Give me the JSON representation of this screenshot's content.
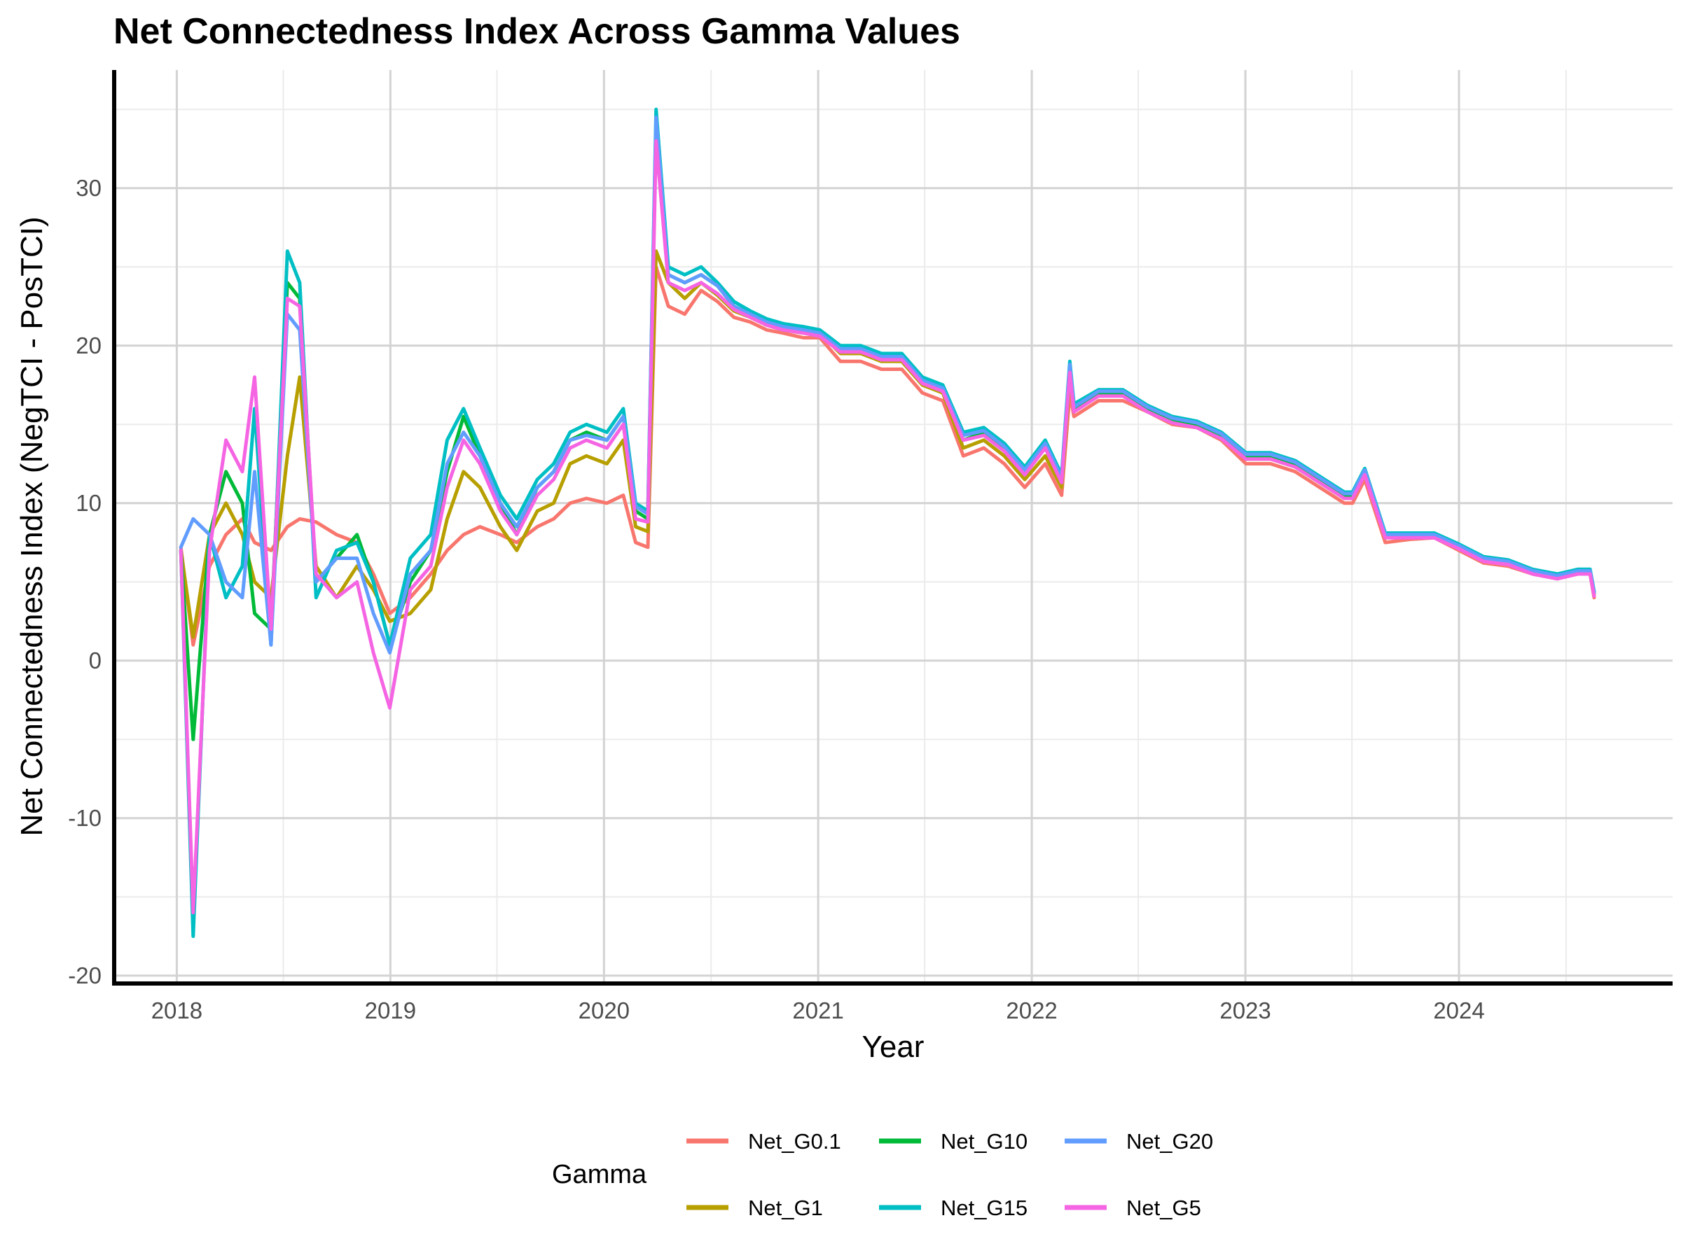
{
  "chart_data": {
    "type": "line",
    "title": "Net Connectedness Index Across Gamma Values",
    "xlabel": "Year",
    "ylabel": "Net Connectedness Index (NegTCI - PosTCI)",
    "xlim": [
      "2017-09-16",
      "2024-12-31"
    ],
    "ylim": [
      -20.5,
      37.5
    ],
    "x_ticks": [
      "2018",
      "2019",
      "2020",
      "2021",
      "2022",
      "2023",
      "2024"
    ],
    "y_ticks": [
      -20,
      -10,
      0,
      10,
      20,
      30
    ],
    "grid": true,
    "legend": {
      "title": "Gamma",
      "position": "bottom"
    },
    "x": [
      "2018-01-08",
      "2018-01-29",
      "2018-02-26",
      "2018-03-26",
      "2018-04-23",
      "2018-05-14",
      "2018-06-11",
      "2018-07-09",
      "2018-07-30",
      "2018-08-27",
      "2018-10-01",
      "2018-11-05",
      "2018-12-03",
      "2018-12-31",
      "2019-02-04",
      "2019-03-11",
      "2019-04-08",
      "2019-05-06",
      "2019-06-03",
      "2019-07-08",
      "2019-08-05",
      "2019-09-09",
      "2019-10-07",
      "2019-11-04",
      "2019-12-02",
      "2020-01-06",
      "2020-02-03",
      "2020-02-24",
      "2020-03-16",
      "2020-03-30",
      "2020-04-20",
      "2020-05-18",
      "2020-06-15",
      "2020-07-13",
      "2020-08-10",
      "2020-09-07",
      "2020-10-05",
      "2020-11-02",
      "2020-12-07",
      "2021-01-04",
      "2021-02-08",
      "2021-03-15",
      "2021-04-19",
      "2021-05-24",
      "2021-06-28",
      "2021-08-02",
      "2021-09-06",
      "2021-10-11",
      "2021-11-15",
      "2021-12-20",
      "2022-01-24",
      "2022-02-21",
      "2022-03-07",
      "2022-03-14",
      "2022-04-25",
      "2022-06-06",
      "2022-07-18",
      "2022-08-29",
      "2022-10-10",
      "2022-11-21",
      "2023-01-02",
      "2023-02-13",
      "2023-03-27",
      "2023-05-08",
      "2023-06-19",
      "2023-07-03",
      "2023-07-24",
      "2023-08-28",
      "2023-10-09",
      "2023-11-20",
      "2024-01-01",
      "2024-02-12",
      "2024-03-25",
      "2024-05-06",
      "2024-06-17",
      "2024-07-22",
      "2024-08-12",
      "2024-08-19"
    ],
    "series": [
      {
        "name": "Net_G0.1",
        "color": "#F8766D",
        "values": [
          7.2,
          1.0,
          6.0,
          8.0,
          9.0,
          7.5,
          7.0,
          8.5,
          9.0,
          8.8,
          8.0,
          7.5,
          5.5,
          3.0,
          4.0,
          5.5,
          7.0,
          8.0,
          8.5,
          8.0,
          7.5,
          8.5,
          9.0,
          10.0,
          10.3,
          10.0,
          10.5,
          7.5,
          7.2,
          25.0,
          22.5,
          22.0,
          23.5,
          22.8,
          21.8,
          21.5,
          21.0,
          20.8,
          20.5,
          20.5,
          19.0,
          19.0,
          18.5,
          18.5,
          17.0,
          16.5,
          13.0,
          13.5,
          12.5,
          11.0,
          12.5,
          10.5,
          17.0,
          15.5,
          16.5,
          16.5,
          15.8,
          15.0,
          14.8,
          14.0,
          12.5,
          12.5,
          12.0,
          11.0,
          10.0,
          10.0,
          11.5,
          7.5,
          7.7,
          7.8,
          7.0,
          6.2,
          6.0,
          5.5,
          5.2,
          5.5,
          5.5,
          4.0
        ]
      },
      {
        "name": "Net_G1",
        "color": "#B79F00",
        "values": [
          7.0,
          1.5,
          8.0,
          10.0,
          8.0,
          5.0,
          4.0,
          13.0,
          18.0,
          6.0,
          4.0,
          6.0,
          4.5,
          2.5,
          3.0,
          4.5,
          9.0,
          12.0,
          11.0,
          8.5,
          7.0,
          9.5,
          10.0,
          12.5,
          13.0,
          12.5,
          14.0,
          8.5,
          8.2,
          26.0,
          24.0,
          23.0,
          24.0,
          23.2,
          22.2,
          21.8,
          21.3,
          21.0,
          20.8,
          20.8,
          19.5,
          19.5,
          19.0,
          19.0,
          17.5,
          17.0,
          13.5,
          14.0,
          13.0,
          11.5,
          13.0,
          11.0,
          18.0,
          16.0,
          17.0,
          17.0,
          16.0,
          15.2,
          15.0,
          14.2,
          12.8,
          12.8,
          12.3,
          11.3,
          10.3,
          10.3,
          12.0,
          7.8,
          7.9,
          8.0,
          7.2,
          6.4,
          6.2,
          5.6,
          5.3,
          5.6,
          5.6,
          4.2
        ]
      },
      {
        "name": "Net_G10",
        "color": "#00BA38",
        "values": [
          7.0,
          -5.0,
          8.0,
          12.0,
          10.0,
          3.0,
          2.0,
          24.0,
          23.0,
          5.0,
          6.5,
          8.0,
          5.0,
          1.0,
          5.0,
          7.0,
          12.0,
          15.5,
          13.0,
          10.0,
          8.0,
          11.0,
          12.0,
          14.0,
          14.5,
          14.0,
          15.5,
          9.5,
          9.0,
          34.0,
          24.5,
          24.0,
          24.5,
          23.8,
          22.5,
          22.0,
          21.5,
          21.2,
          21.0,
          20.8,
          19.8,
          19.8,
          19.2,
          19.3,
          17.8,
          17.3,
          14.0,
          14.5,
          13.5,
          12.0,
          13.5,
          11.5,
          18.5,
          16.0,
          17.0,
          17.0,
          16.0,
          15.3,
          15.0,
          14.3,
          13.0,
          13.0,
          12.5,
          11.5,
          10.5,
          10.5,
          12.0,
          8.0,
          8.0,
          8.0,
          7.3,
          6.5,
          6.3,
          5.7,
          5.4,
          5.7,
          5.7,
          4.3
        ]
      },
      {
        "name": "Net_G15",
        "color": "#00BFC4",
        "values": [
          7.0,
          -17.5,
          8.0,
          4.0,
          6.0,
          16.0,
          1.0,
          26.0,
          24.0,
          4.0,
          7.0,
          7.5,
          5.0,
          1.0,
          6.5,
          8.0,
          14.0,
          16.0,
          13.5,
          10.5,
          9.0,
          11.5,
          12.5,
          14.5,
          15.0,
          14.5,
          16.0,
          10.0,
          9.5,
          35.0,
          25.0,
          24.5,
          25.0,
          24.0,
          22.8,
          22.2,
          21.7,
          21.4,
          21.2,
          21.0,
          20.0,
          20.0,
          19.5,
          19.5,
          18.0,
          17.5,
          14.5,
          14.8,
          13.8,
          12.3,
          14.0,
          11.8,
          19.0,
          16.3,
          17.2,
          17.2,
          16.2,
          15.5,
          15.2,
          14.5,
          13.2,
          13.2,
          12.7,
          11.7,
          10.7,
          10.7,
          12.2,
          8.1,
          8.1,
          8.1,
          7.4,
          6.6,
          6.4,
          5.8,
          5.5,
          5.8,
          5.8,
          4.4
        ]
      },
      {
        "name": "Net_G20",
        "color": "#619CFF",
        "values": [
          7.2,
          9.0,
          8.0,
          5.0,
          4.0,
          12.0,
          1.0,
          22.0,
          21.0,
          5.0,
          6.5,
          6.5,
          3.0,
          0.5,
          5.5,
          7.0,
          12.5,
          14.5,
          13.0,
          10.0,
          8.5,
          11.0,
          12.0,
          14.0,
          14.3,
          14.0,
          15.5,
          9.8,
          9.3,
          34.5,
          24.5,
          24.0,
          24.5,
          23.8,
          22.5,
          22.0,
          21.5,
          21.2,
          21.0,
          20.8,
          19.8,
          19.8,
          19.3,
          19.3,
          17.8,
          17.3,
          14.3,
          14.6,
          13.6,
          12.1,
          13.8,
          11.6,
          18.8,
          16.1,
          17.1,
          17.1,
          16.1,
          15.4,
          15.1,
          14.4,
          13.1,
          13.1,
          12.6,
          11.6,
          10.6,
          10.6,
          12.1,
          8.0,
          8.0,
          8.0,
          7.3,
          6.5,
          6.3,
          5.7,
          5.4,
          5.7,
          5.7,
          4.3
        ]
      },
      {
        "name": "Net_G5",
        "color": "#F564E3",
        "values": [
          7.0,
          -16.0,
          7.0,
          14.0,
          12.0,
          18.0,
          2.0,
          23.0,
          22.5,
          5.5,
          4.0,
          5.0,
          0.5,
          -3.0,
          4.5,
          6.0,
          11.0,
          14.0,
          12.5,
          9.5,
          8.0,
          10.5,
          11.5,
          13.5,
          14.0,
          13.5,
          15.0,
          9.0,
          8.8,
          33.0,
          24.0,
          23.5,
          24.0,
          23.3,
          22.3,
          21.8,
          21.3,
          21.0,
          20.8,
          20.6,
          19.6,
          19.6,
          19.1,
          19.1,
          17.6,
          17.1,
          14.0,
          14.3,
          13.3,
          11.8,
          13.5,
          11.3,
          18.3,
          15.8,
          16.8,
          16.8,
          15.8,
          15.1,
          14.8,
          14.1,
          12.8,
          12.8,
          12.3,
          11.3,
          10.3,
          10.3,
          11.8,
          7.8,
          7.8,
          7.8,
          7.1,
          6.3,
          6.1,
          5.5,
          5.2,
          5.5,
          5.5,
          4.1
        ]
      }
    ]
  }
}
